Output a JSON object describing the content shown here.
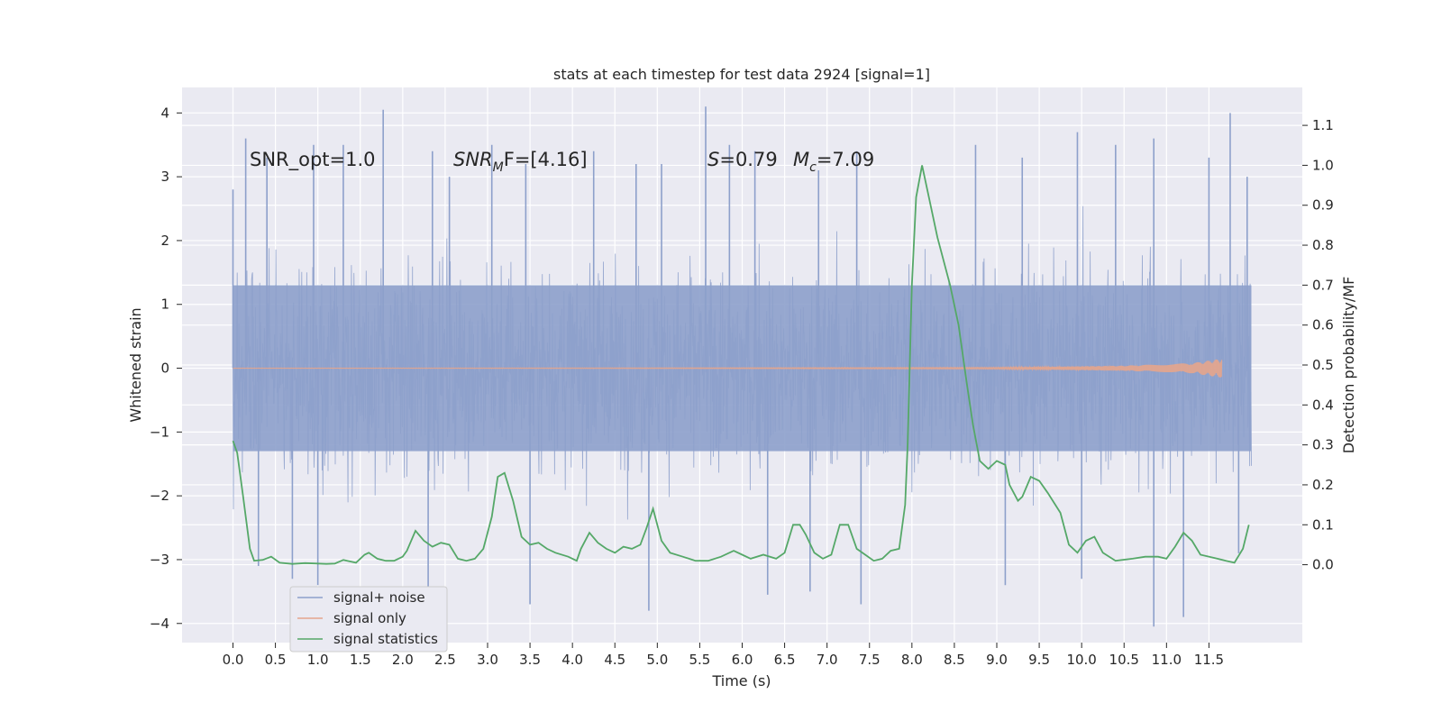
{
  "chart_data": {
    "type": "line",
    "title": "stats at each timestep for test data 2924 [signal=1]",
    "xlabel": "Time (s)",
    "ylabel_left": "Whitened strain",
    "ylabel_right": "Detection probability/MF",
    "xlim": [
      -0.6,
      12.6
    ],
    "ylim_left": [
      -4.3,
      4.4
    ],
    "ylim_right": [
      -0.195,
      1.195
    ],
    "x_ticks": [
      "0.0",
      "0.5",
      "1.0",
      "1.5",
      "2.0",
      "2.5",
      "3.0",
      "3.5",
      "4.0",
      "4.5",
      "5.0",
      "5.5",
      "6.0",
      "6.5",
      "7.0",
      "7.5",
      "8.0",
      "8.5",
      "9.0",
      "9.5",
      "10.0",
      "10.5",
      "11.0",
      "11.5"
    ],
    "y_ticks_left": [
      "4",
      "3",
      "2",
      "1",
      "0",
      "−1",
      "−2",
      "−3",
      "−4"
    ],
    "y_ticks_right": [
      "1.1",
      "1.0",
      "0.9",
      "0.8",
      "0.7",
      "0.6",
      "0.5",
      "0.4",
      "0.3",
      "0.2",
      "0.1",
      "0.0"
    ],
    "grid": true,
    "legend_position": "lower-left",
    "annotations": {
      "snr_opt": "SNR_opt=1.0",
      "snr_mf_main": "SNR",
      "snr_mf_sub": "M",
      "snr_mf_rest": "F=[4.16]",
      "s_main": "S",
      "s_rest": "=0.79",
      "mc_main": "M",
      "mc_sub": "c",
      "mc_rest": "=7.09"
    },
    "series": [
      {
        "name": "signal+ noise",
        "axis": "left",
        "color": "#8da0cb",
        "note_envelope_typical": [
          -1.8,
          1.9
        ],
        "spikes": [
          [
            0.0,
            2.8
          ],
          [
            0.15,
            3.6
          ],
          [
            0.4,
            3.3
          ],
          [
            0.95,
            3.5
          ],
          [
            1.3,
            3.5
          ],
          [
            1.77,
            4.05
          ],
          [
            2.35,
            3.4
          ],
          [
            2.55,
            3.0
          ],
          [
            3.05,
            3.5
          ],
          [
            3.45,
            3.2
          ],
          [
            4.25,
            3.4
          ],
          [
            4.75,
            3.2
          ],
          [
            5.05,
            3.2
          ],
          [
            5.57,
            4.1
          ],
          [
            5.85,
            3.5
          ],
          [
            6.15,
            3.4
          ],
          [
            6.9,
            3.1
          ],
          [
            7.35,
            3.4
          ],
          [
            8.75,
            3.5
          ],
          [
            9.3,
            3.3
          ],
          [
            9.95,
            3.7
          ],
          [
            10.4,
            3.5
          ],
          [
            10.85,
            3.6
          ],
          [
            11.5,
            3.3
          ],
          [
            11.75,
            4.0
          ],
          [
            11.95,
            3.0
          ],
          [
            0.3,
            -3.1
          ],
          [
            0.7,
            -3.3
          ],
          [
            1.0,
            -3.4
          ],
          [
            2.3,
            -3.6
          ],
          [
            3.5,
            -3.7
          ],
          [
            4.9,
            -3.8
          ],
          [
            6.3,
            -3.55
          ],
          [
            6.8,
            -3.5
          ],
          [
            7.4,
            -3.7
          ],
          [
            9.1,
            -3.4
          ],
          [
            10.0,
            -3.3
          ],
          [
            10.85,
            -4.05
          ],
          [
            11.2,
            -3.9
          ],
          [
            11.85,
            -2.9
          ]
        ]
      },
      {
        "name": "signal only",
        "axis": "left",
        "color": "#e5a58c",
        "note": "near-zero flat line with chirp growing to about ±0.15 near t=11.65 s",
        "chirp_points": [
          [
            0.0,
            0.0
          ],
          [
            9.0,
            0.01
          ],
          [
            10.5,
            0.04
          ],
          [
            11.3,
            0.08
          ],
          [
            11.65,
            0.15
          ]
        ]
      },
      {
        "name": "signal statistics",
        "axis": "right",
        "color": "#55a868",
        "x": [
          0.0,
          0.05,
          0.12,
          0.2,
          0.25,
          0.35,
          0.45,
          0.55,
          0.7,
          0.85,
          1.0,
          1.1,
          1.2,
          1.3,
          1.45,
          1.55,
          1.6,
          1.7,
          1.8,
          1.9,
          2.0,
          2.05,
          2.15,
          2.25,
          2.35,
          2.45,
          2.55,
          2.65,
          2.75,
          2.85,
          2.95,
          3.05,
          3.12,
          3.2,
          3.3,
          3.4,
          3.5,
          3.6,
          3.7,
          3.8,
          3.95,
          4.05,
          4.1,
          4.2,
          4.3,
          4.4,
          4.5,
          4.6,
          4.7,
          4.8,
          4.87,
          4.95,
          5.05,
          5.15,
          5.3,
          5.45,
          5.6,
          5.75,
          5.9,
          6.0,
          6.1,
          6.25,
          6.4,
          6.5,
          6.6,
          6.68,
          6.75,
          6.85,
          6.95,
          7.05,
          7.15,
          7.25,
          7.35,
          7.45,
          7.55,
          7.65,
          7.75,
          7.85,
          7.92,
          7.95,
          8.0,
          8.05,
          8.12,
          8.2,
          8.3,
          8.45,
          8.55,
          8.65,
          8.72,
          8.8,
          8.9,
          9.0,
          9.1,
          9.15,
          9.25,
          9.3,
          9.4,
          9.5,
          9.6,
          9.75,
          9.85,
          9.95,
          10.05,
          10.15,
          10.25,
          10.4,
          10.6,
          10.75,
          10.9,
          11.0,
          11.1,
          11.2,
          11.3,
          11.4,
          11.6,
          11.7,
          11.8,
          11.9,
          11.97
        ],
        "values": [
          0.31,
          0.28,
          0.17,
          0.04,
          0.01,
          0.012,
          0.02,
          0.005,
          0.002,
          0.004,
          0.003,
          0.002,
          0.003,
          0.012,
          0.005,
          0.025,
          0.03,
          0.015,
          0.01,
          0.01,
          0.02,
          0.035,
          0.085,
          0.06,
          0.045,
          0.055,
          0.05,
          0.015,
          0.01,
          0.015,
          0.04,
          0.12,
          0.22,
          0.23,
          0.16,
          0.07,
          0.05,
          0.055,
          0.04,
          0.03,
          0.02,
          0.01,
          0.04,
          0.08,
          0.055,
          0.04,
          0.03,
          0.045,
          0.04,
          0.05,
          0.09,
          0.14,
          0.06,
          0.03,
          0.02,
          0.01,
          0.01,
          0.02,
          0.035,
          0.025,
          0.015,
          0.025,
          0.015,
          0.03,
          0.1,
          0.1,
          0.075,
          0.03,
          0.015,
          0.025,
          0.1,
          0.1,
          0.04,
          0.025,
          0.01,
          0.015,
          0.035,
          0.04,
          0.15,
          0.3,
          0.7,
          0.92,
          1.0,
          0.92,
          0.82,
          0.7,
          0.6,
          0.45,
          0.35,
          0.26,
          0.24,
          0.26,
          0.25,
          0.2,
          0.16,
          0.17,
          0.22,
          0.21,
          0.18,
          0.13,
          0.05,
          0.03,
          0.06,
          0.07,
          0.03,
          0.01,
          0.015,
          0.02,
          0.02,
          0.015,
          0.045,
          0.08,
          0.06,
          0.025,
          0.015,
          0.01,
          0.005,
          0.04,
          0.1
        ]
      }
    ]
  }
}
